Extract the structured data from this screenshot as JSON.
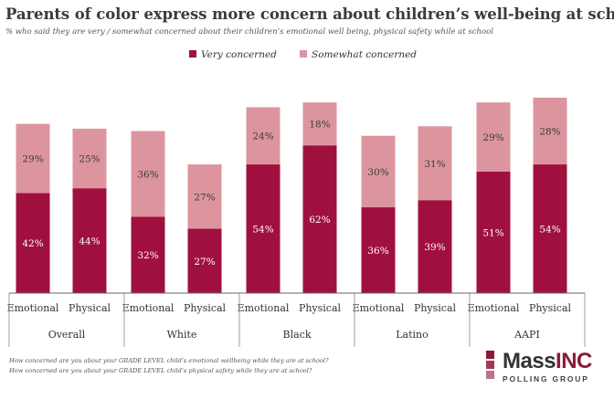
{
  "header": {
    "title": "Parents of color express more concern about children’s well-being at school",
    "subtitle": "% who said they are very / somewhat concerned about their children’s  emotional well being, physical safety while at school"
  },
  "chart_data": {
    "type": "bar",
    "stacked": true,
    "ylim": [
      0,
      100
    ],
    "grid": false,
    "legend_position": "top",
    "groups": [
      "Overall",
      "White",
      "Black",
      "Latino",
      "AAPI"
    ],
    "categories": [
      "Emotional",
      "Physical",
      "Emotional",
      "Physical",
      "Emotional",
      "Physical",
      "Emotional",
      "Physical",
      "Emotional",
      "Physical"
    ],
    "series": [
      {
        "name": "Very concerned",
        "color": "#a0103e",
        "values": [
          42,
          44,
          32,
          27,
          54,
          62,
          36,
          39,
          51,
          54
        ]
      },
      {
        "name": "Somewhat concerned",
        "color": "#dc959f",
        "values": [
          29,
          25,
          36,
          27,
          24,
          18,
          30,
          31,
          29,
          28
        ]
      }
    ]
  },
  "footnotes": [
    "How concerned are you about your GRADE LEVEL child’s emotional wellbeing while they are at school?",
    "How concerned are you about your GRADE LEVEL child’s physical safety while they are at school?"
  ],
  "logo": {
    "name_main": "Mass",
    "name_accent": "INC",
    "subtitle": "POLLING GROUP"
  }
}
